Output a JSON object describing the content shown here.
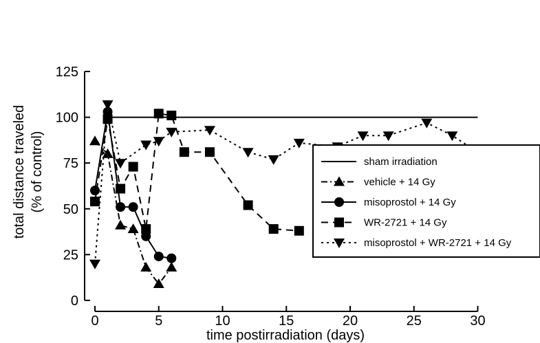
{
  "chart_data": {
    "type": "line",
    "title": "",
    "xlabel": "time postirradiation (days)",
    "ylabel_line1": "total distance traveled",
    "ylabel_line2": "(% of control)",
    "xlim": [
      0,
      30
    ],
    "ylim": [
      0,
      125
    ],
    "xticks": [
      0,
      5,
      10,
      15,
      20,
      25,
      30
    ],
    "yticks": [
      0,
      25,
      50,
      75,
      100,
      125
    ],
    "grid": false,
    "legend_position": "center-right",
    "series": [
      {
        "name": "sham irradiation",
        "style": "solid",
        "marker": "none",
        "x": [
          1,
          30
        ],
        "y": [
          100,
          100
        ]
      },
      {
        "name": "vehicle + 14 Gy",
        "style": "dashdot",
        "marker": "triangle-up",
        "x": [
          0,
          1,
          2,
          3,
          4,
          5,
          6
        ],
        "y": [
          87,
          80,
          41,
          39,
          18,
          9,
          18
        ]
      },
      {
        "name": "misoprostol + 14 Gy",
        "style": "solid",
        "marker": "circle",
        "x": [
          0,
          1,
          2,
          3,
          4,
          5,
          6
        ],
        "y": [
          60,
          103,
          51,
          51,
          35,
          24,
          23
        ]
      },
      {
        "name": "WR-2721 + 14 Gy",
        "style": "dashed",
        "marker": "square",
        "x": [
          0,
          1,
          2,
          3,
          4,
          5,
          6,
          7,
          9,
          12,
          14,
          16
        ],
        "y": [
          54,
          99,
          61,
          73,
          39,
          102,
          101,
          81,
          81,
          52,
          39,
          38
        ]
      },
      {
        "name": "misoprostol + WR-2721 + 14 Gy",
        "style": "dotted",
        "marker": "triangle-down",
        "x": [
          0,
          1,
          2,
          4,
          5,
          6,
          9,
          12,
          14,
          16,
          19,
          21,
          23,
          26,
          28,
          30
        ],
        "y": [
          20,
          107,
          75,
          85,
          87,
          92,
          93,
          81,
          77,
          86,
          84,
          90,
          90,
          97,
          90,
          81
        ]
      }
    ]
  }
}
